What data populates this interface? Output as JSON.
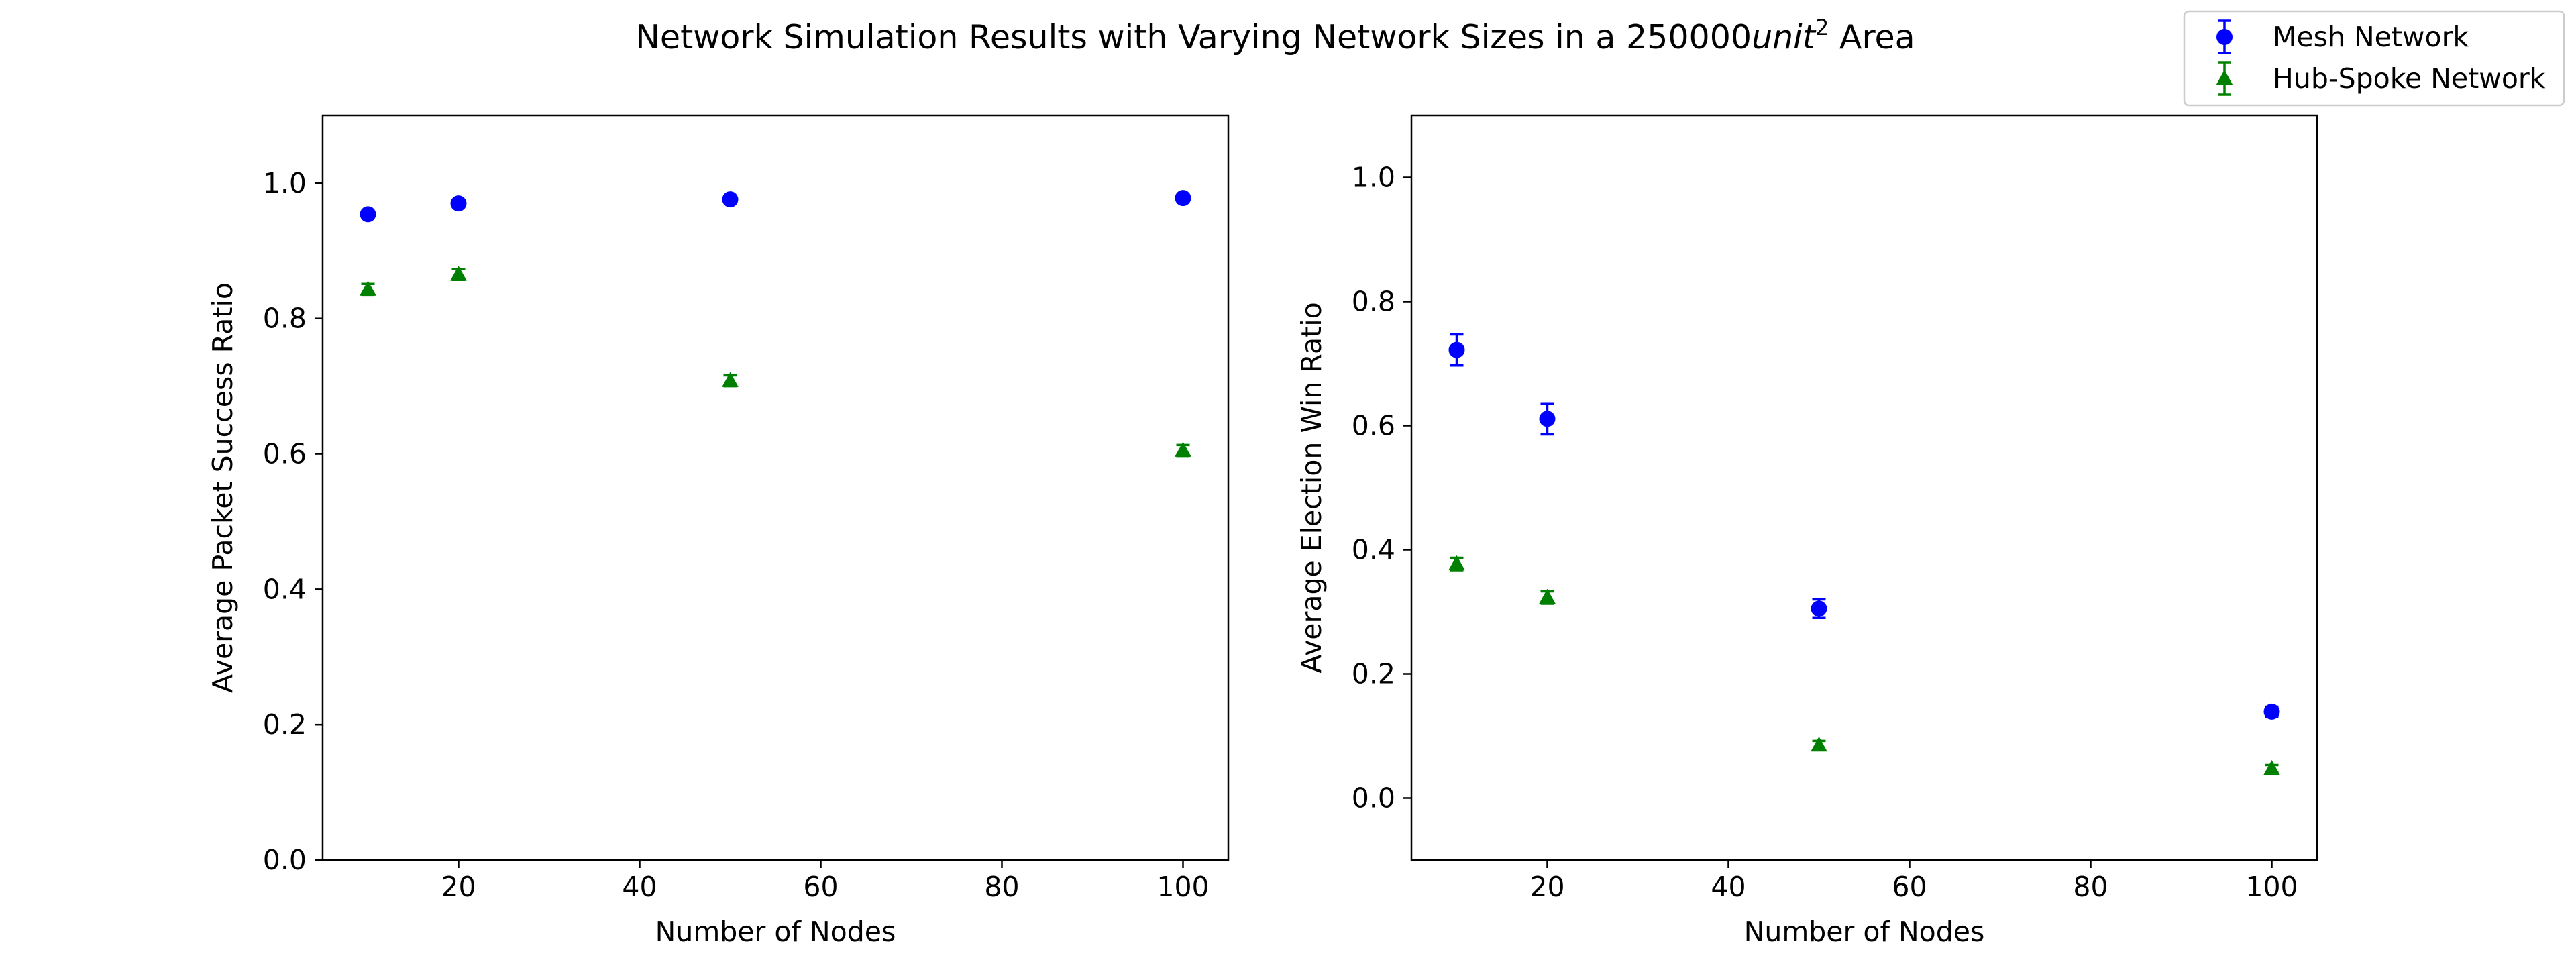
{
  "figure": {
    "title_prefix": "Network Simulation Results with Varying Network Sizes in a 250000",
    "title_unit": "unit",
    "title_exponent": "2",
    "title_suffix": " Area"
  },
  "legend": {
    "placement": "top-right",
    "entries": [
      {
        "label": "Mesh Network",
        "color": "#0000ff",
        "marker": "circle"
      },
      {
        "label": "Hub-Spoke Network",
        "color": "#008000",
        "marker": "triangle"
      }
    ]
  },
  "chart_data": [
    {
      "type": "scatter",
      "xlabel": "Number of Nodes",
      "ylabel": "Average Packet Success Ratio",
      "xlim": [
        5,
        105
      ],
      "ylim": [
        0.0,
        1.1
      ],
      "xticks": [
        20,
        40,
        60,
        80,
        100
      ],
      "xtick_labels": [
        "20",
        "40",
        "60",
        "80",
        "100"
      ],
      "yticks": [
        0.0,
        0.2,
        0.4,
        0.6,
        0.8,
        1.0
      ],
      "ytick_labels": [
        "0.0",
        "0.2",
        "0.4",
        "0.6",
        "0.8",
        "1.0"
      ],
      "grid": false,
      "x": [
        10,
        20,
        50,
        100
      ],
      "series": [
        {
          "name": "Mesh Network",
          "color": "#0000ff",
          "marker": "circle",
          "values": [
            0.954,
            0.97,
            0.976,
            0.978
          ],
          "errors": [
            0.004,
            0.004,
            0.003,
            0.003
          ]
        },
        {
          "name": "Hub-Spoke Network",
          "color": "#008000",
          "marker": "triangle",
          "values": [
            0.843,
            0.865,
            0.708,
            0.605
          ],
          "errors": [
            0.008,
            0.008,
            0.008,
            0.008
          ]
        }
      ]
    },
    {
      "type": "scatter",
      "xlabel": "Number of Nodes",
      "ylabel": "Average Election Win Ratio",
      "xlim": [
        5,
        105
      ],
      "ylim": [
        -0.1,
        1.1
      ],
      "xticks": [
        20,
        40,
        60,
        80,
        100
      ],
      "xtick_labels": [
        "20",
        "40",
        "60",
        "80",
        "100"
      ],
      "yticks": [
        0.0,
        0.2,
        0.4,
        0.6,
        0.8,
        1.0
      ],
      "ytick_labels": [
        "0.0",
        "0.2",
        "0.4",
        "0.6",
        "0.8",
        "1.0"
      ],
      "grid": false,
      "x": [
        10,
        20,
        50,
        100
      ],
      "series": [
        {
          "name": "Mesh Network",
          "color": "#0000ff",
          "marker": "circle",
          "values": [
            0.722,
            0.611,
            0.305,
            0.139
          ],
          "errors": [
            0.025,
            0.025,
            0.015,
            0.008
          ]
        },
        {
          "name": "Hub-Spoke Network",
          "color": "#008000",
          "marker": "triangle",
          "values": [
            0.377,
            0.323,
            0.085,
            0.047
          ],
          "errors": [
            0.01,
            0.01,
            0.007,
            0.006
          ]
        }
      ]
    }
  ]
}
